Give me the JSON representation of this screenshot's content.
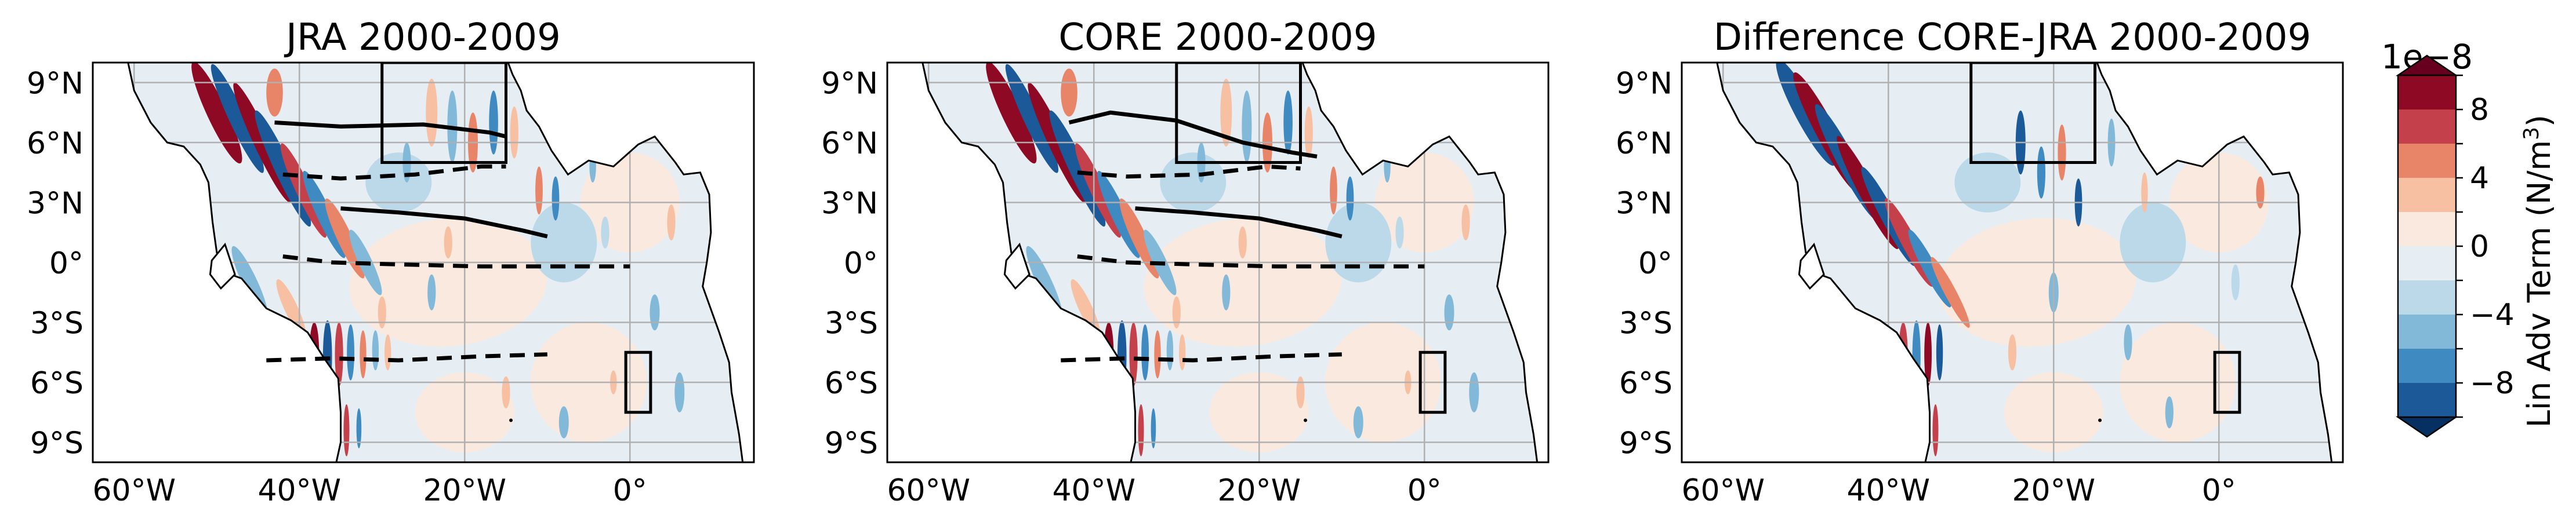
{
  "panels": [
    {
      "title": "JRA 2000-2009"
    },
    {
      "title": "CORE 2000-2009"
    },
    {
      "title": "Difference CORE-JRA 2000-2009"
    }
  ],
  "map": {
    "lon_range": [
      -65,
      15
    ],
    "lat_range": [
      -10,
      10
    ],
    "lon_ticks": [
      {
        "value": -60,
        "label": "60°W"
      },
      {
        "value": -40,
        "label": "40°W"
      },
      {
        "value": -20,
        "label": "20°W"
      },
      {
        "value": 0,
        "label": "0°"
      }
    ],
    "lat_ticks": [
      {
        "value": 9,
        "label": "9°N"
      },
      {
        "value": 6,
        "label": "6°N"
      },
      {
        "value": 3,
        "label": "3°N"
      },
      {
        "value": 0,
        "label": "0°"
      },
      {
        "value": -3,
        "label": "3°S"
      },
      {
        "value": -6,
        "label": "6°S"
      },
      {
        "value": -9,
        "label": "9°S"
      }
    ],
    "gridlines": true,
    "boxes": [
      {
        "lon": [
          -30,
          -15
        ],
        "lat": [
          5,
          10
        ]
      },
      {
        "lon": [
          -0.5,
          2.5
        ],
        "lat": [
          -7.5,
          -4.5
        ]
      }
    ]
  },
  "colorbar": {
    "label": "Lin Adv Term (N/m",
    "label_sup": "3",
    "label_close": ")",
    "exponent": "1e−8",
    "range": [
      -10,
      10
    ],
    "tick_labels": [
      {
        "value": 8,
        "label": "8"
      },
      {
        "value": 4,
        "label": "4"
      },
      {
        "value": 0,
        "label": "0"
      },
      {
        "value": -4,
        "label": "−4"
      },
      {
        "value": -8,
        "label": "−8"
      }
    ],
    "levels": [
      10,
      8,
      6,
      4,
      2,
      0,
      -2,
      -4,
      -6,
      -8,
      -10
    ],
    "colors": [
      "#8e0a24",
      "#c4404b",
      "#e88468",
      "#f8c0a2",
      "#fae9df",
      "#e6eef4",
      "#bcd9ea",
      "#82b8d8",
      "#3f8bc1",
      "#1b5999"
    ],
    "extend_top": "#67001f",
    "extend_bottom": "#053061"
  },
  "colors": {
    "land": "#ffffff",
    "ocean_bg": "#e6eef4",
    "grid": "#b0b0b0",
    "contour": "#000000"
  }
}
